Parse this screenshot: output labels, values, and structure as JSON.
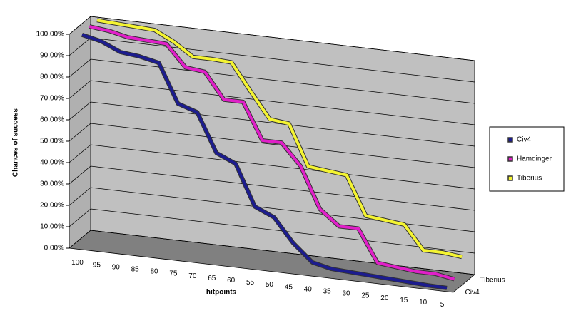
{
  "chart_data": {
    "type": "line3d",
    "x_label": "hitpoints",
    "y_label": "Chances of success",
    "categories": [
      "100",
      "95",
      "90",
      "85",
      "80",
      "75",
      "70",
      "65",
      "60",
      "55",
      "50",
      "45",
      "40",
      "35",
      "30",
      "25",
      "20",
      "15",
      "10",
      "5"
    ],
    "series": [
      {
        "name": "Civ4",
        "color": "#1c1c8e",
        "values": [
          99,
          97,
          93,
          92,
          90,
          72,
          69,
          51,
          47,
          28,
          24,
          13,
          5,
          3,
          2.5,
          2,
          1.5,
          1,
          0.5,
          0.3
        ]
      },
      {
        "name": "Hamdinger",
        "color": "#e020c8",
        "values": [
          100,
          99,
          97,
          96.5,
          96,
          86,
          85,
          73,
          73,
          56,
          56,
          46,
          27,
          20,
          20,
          5,
          4,
          3,
          3,
          1.5
        ]
      },
      {
        "name": "Tiberius",
        "color": "#f4f432",
        "values": [
          100,
          99.5,
          99,
          98.5,
          94,
          88,
          88,
          87.5,
          75,
          63,
          62,
          43,
          42,
          41,
          23,
          22,
          21,
          10,
          10,
          9
        ]
      }
    ],
    "series_axis_labels": [
      "Civ4",
      "Tiberius"
    ],
    "ylim": [
      0,
      100
    ],
    "yticks": [
      {
        "value": 0,
        "label": "0.00%"
      },
      {
        "value": 10,
        "label": "10.00%"
      },
      {
        "value": 20,
        "label": "20.00%"
      },
      {
        "value": 30,
        "label": "30.00%"
      },
      {
        "value": 40,
        "label": "40.00%"
      },
      {
        "value": 50,
        "label": "50.00%"
      },
      {
        "value": 60,
        "label": "60.00%"
      },
      {
        "value": 70,
        "label": "70.00%"
      },
      {
        "value": 80,
        "label": "80.00%"
      },
      {
        "value": 90,
        "label": "90.00%"
      },
      {
        "value": 100,
        "label": "100.00%"
      }
    ],
    "grid": true,
    "legend": "right"
  }
}
